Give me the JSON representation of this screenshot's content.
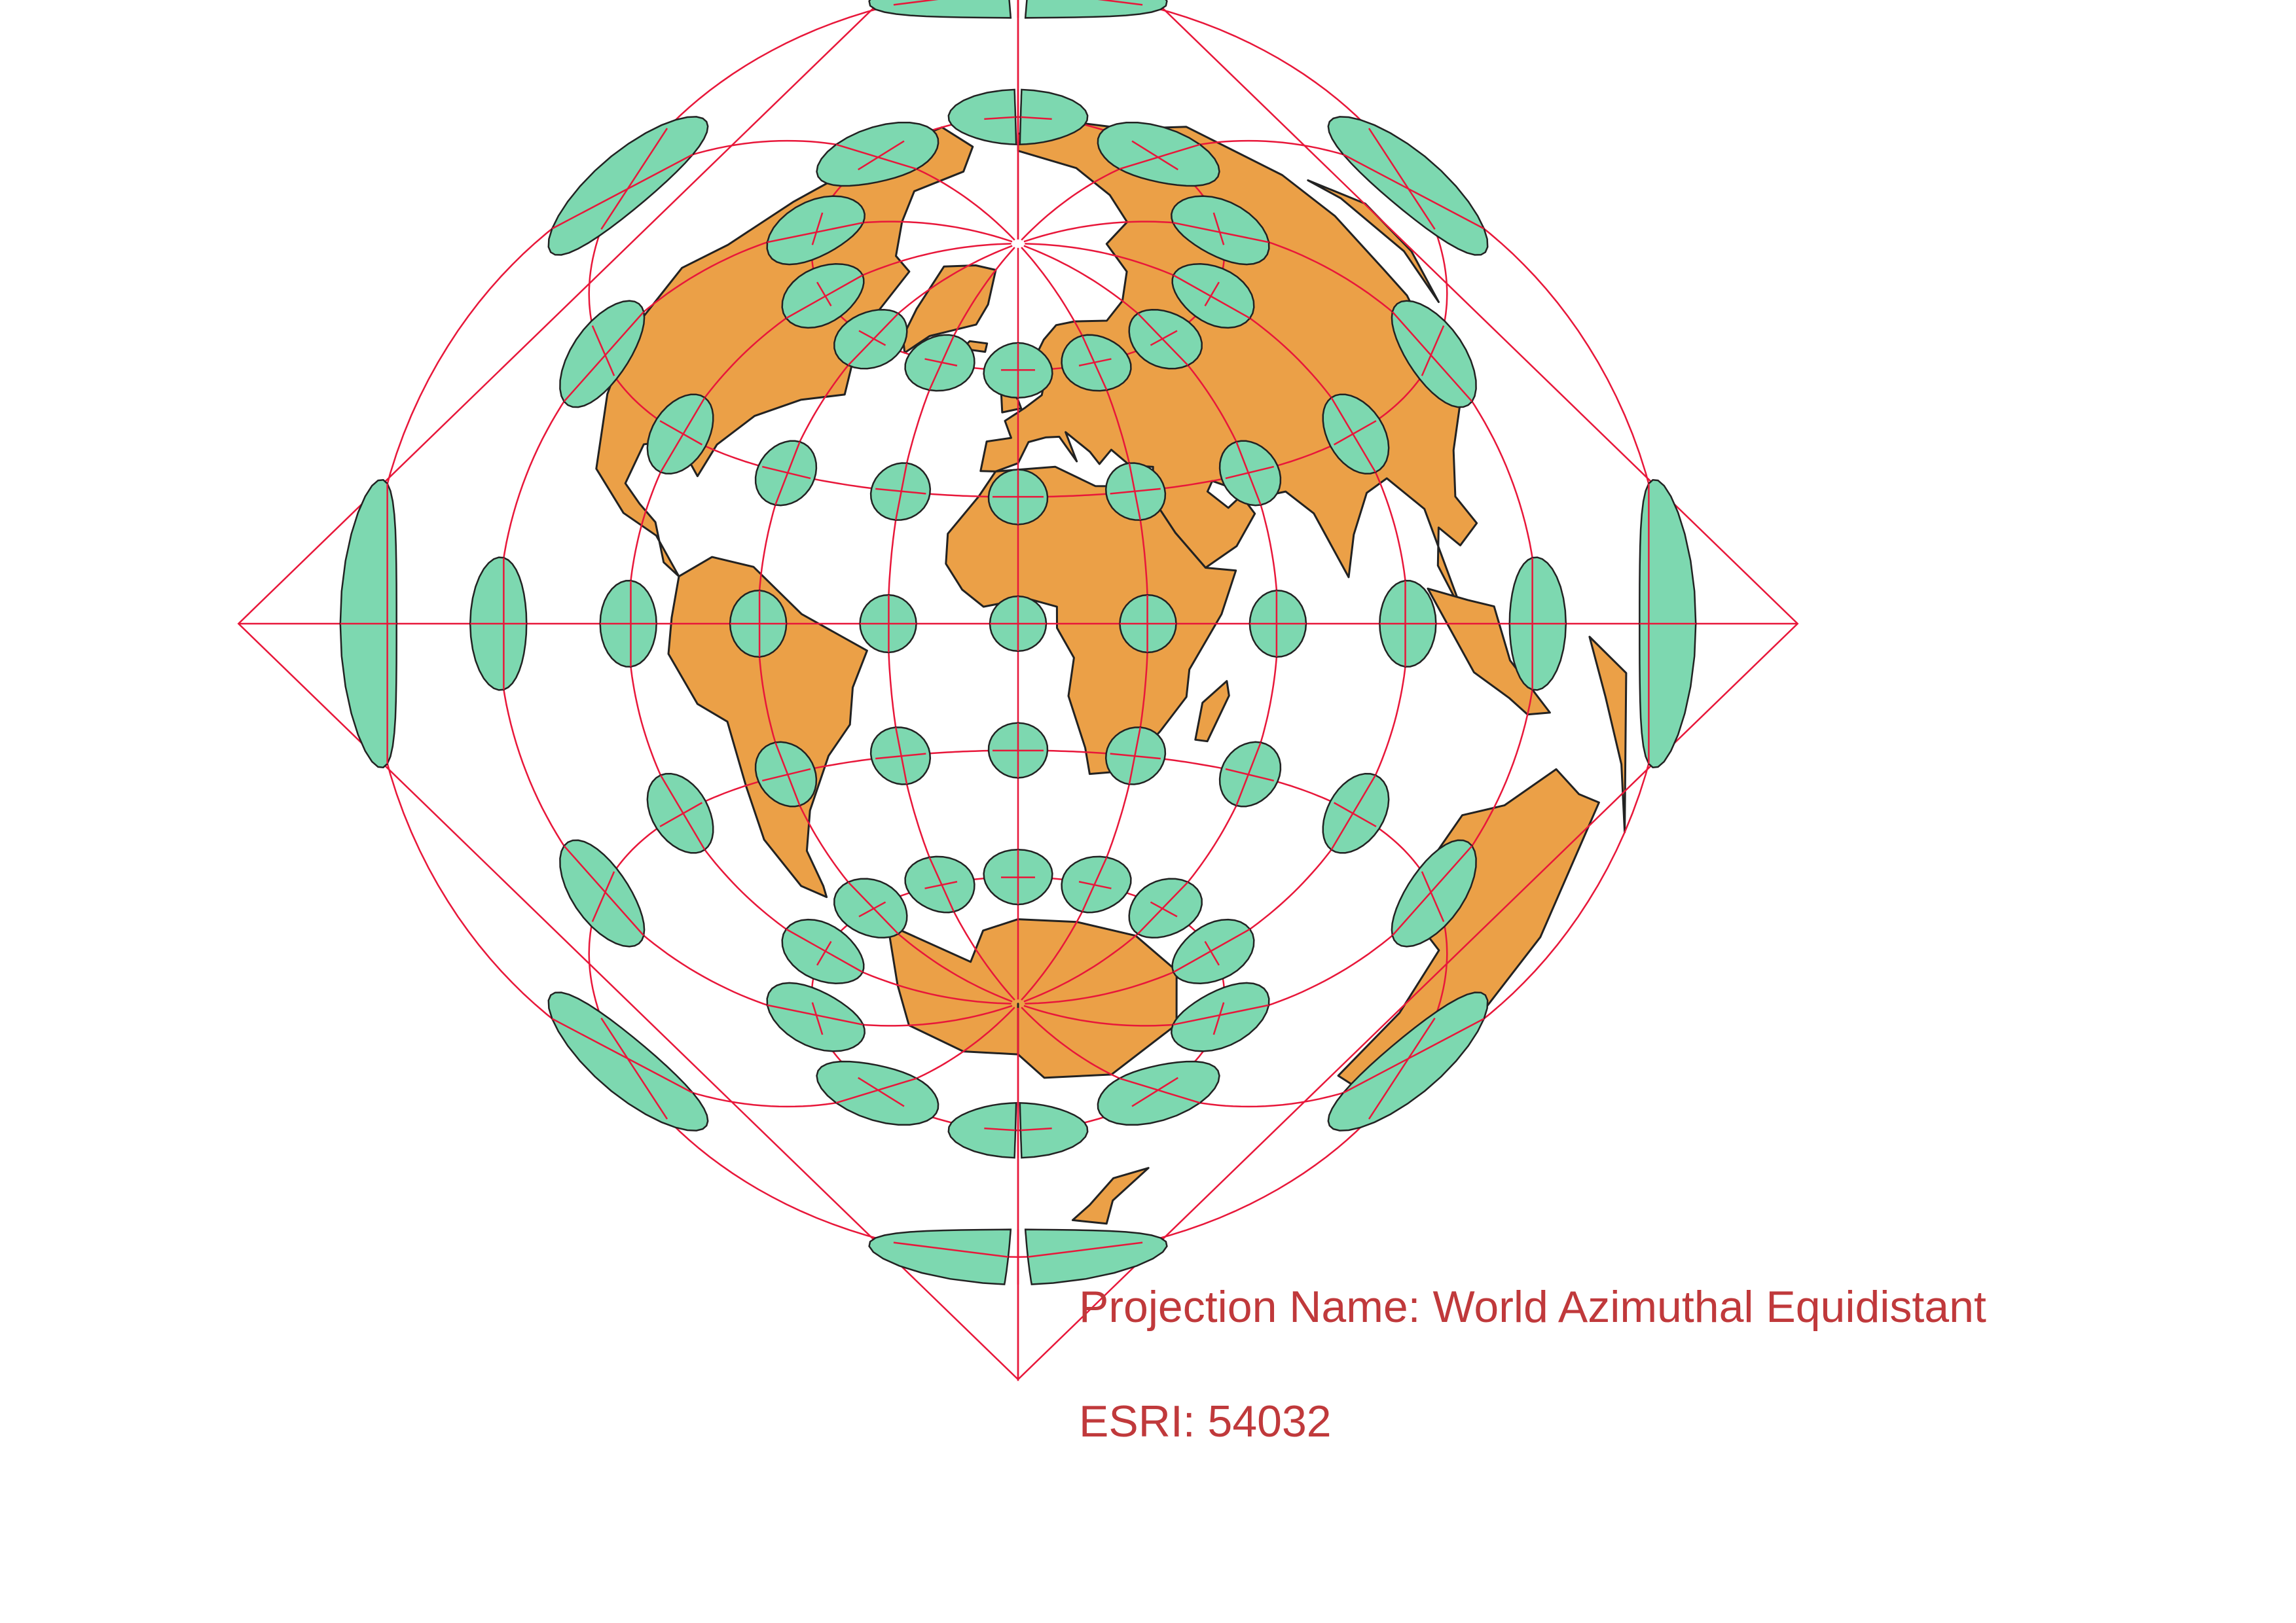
{
  "projection": {
    "name_line": "Projection Name: World Azimuthal Equidistant",
    "esri_line": "ESRI: 54032"
  },
  "style": {
    "land_color": "#eba047",
    "land_stroke": "#222222",
    "graticule_color": "#e8173a",
    "ellipse_fill": "#7dd8b0",
    "ellipse_stroke": "#222222",
    "caption_color": "#c0393b"
  },
  "map": {
    "center": {
      "lon": 0,
      "lat": 0
    },
    "graticule_lon_step": 30,
    "graticule_lat_step": 30,
    "indicatrix_lons": [
      -180,
      -150,
      -120,
      -90,
      -60,
      -30,
      0,
      30,
      60,
      90,
      120,
      150,
      180
    ],
    "indicatrix_lats": [
      -60,
      -30,
      0,
      30,
      60
    ]
  }
}
